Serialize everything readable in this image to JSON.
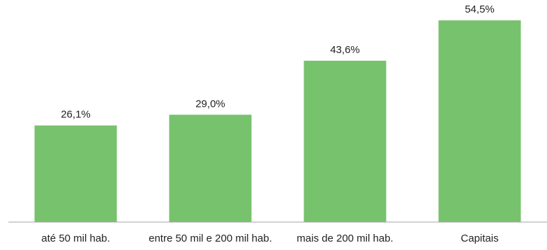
{
  "chart_data": {
    "type": "bar",
    "categories": [
      "até 50 mil hab.",
      "entre 50 mil e 200 mil hab.",
      "mais de  200 mil hab.",
      "Capitais"
    ],
    "values": [
      26.1,
      29.0,
      43.6,
      54.5
    ],
    "data_labels": [
      "26,1%",
      "29,0%",
      "43,6%",
      "54,5%"
    ],
    "title": "",
    "xlabel": "",
    "ylabel": "",
    "ylim": [
      0,
      60
    ],
    "grid": false,
    "legend": "none",
    "bar_color": "#77C26D",
    "axis_color": "#A6A6A6",
    "text_color": "#222222"
  }
}
